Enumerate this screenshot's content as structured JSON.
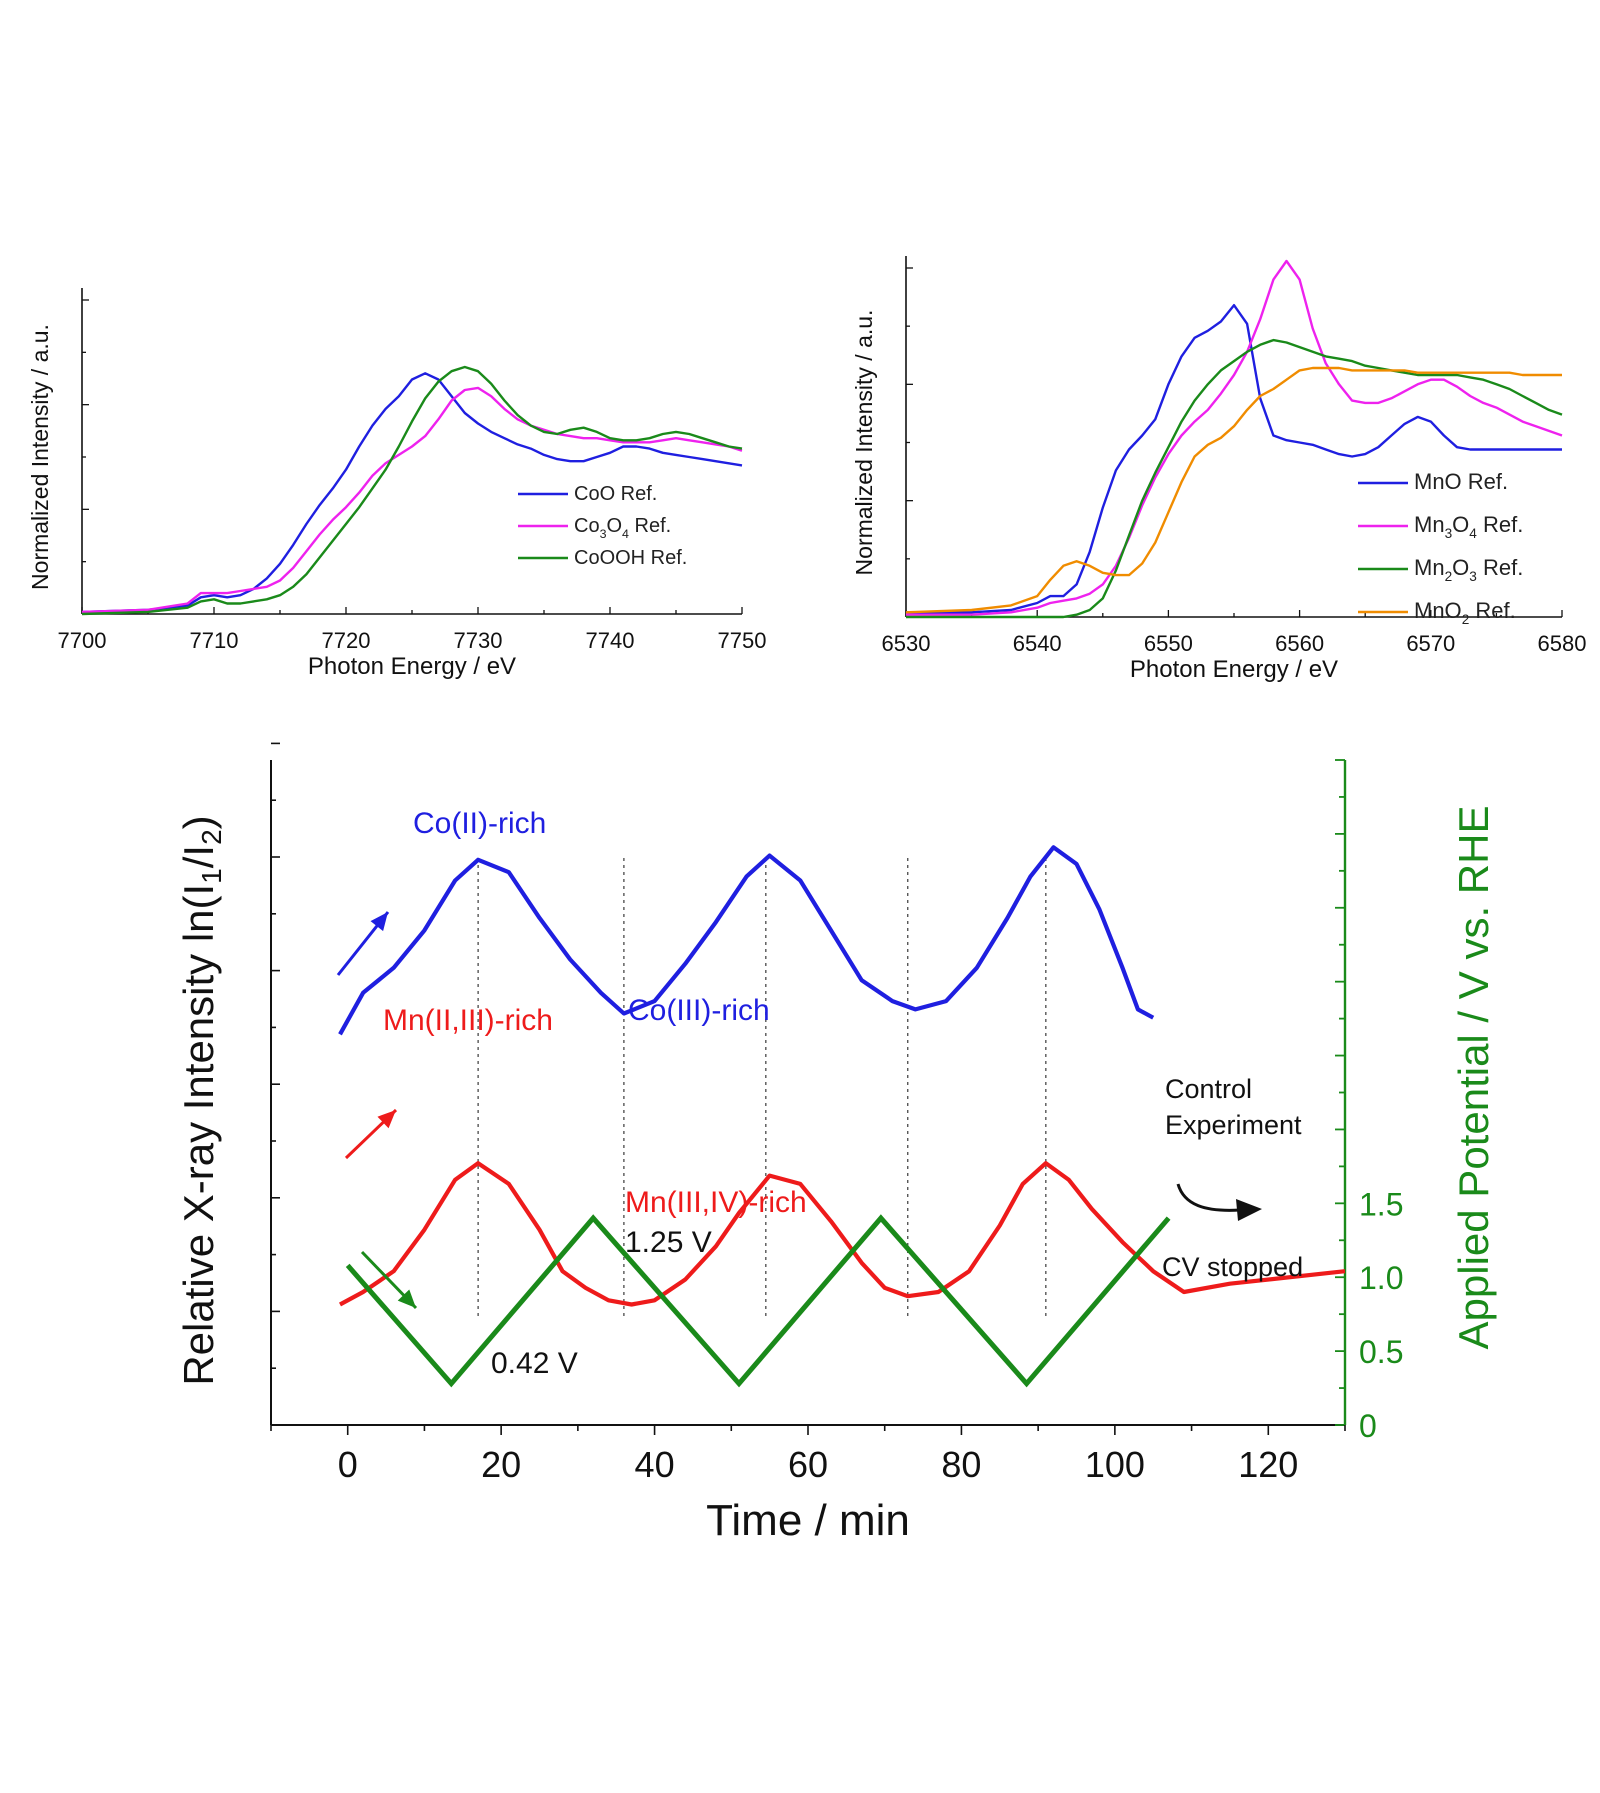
{
  "chart_data": [
    {
      "id": "co",
      "type": "line",
      "xlabel": "Photon Energy / eV",
      "ylabel": "Normalized Intensity / a.u.",
      "xlim": [
        7700,
        7750
      ],
      "ylim": [
        0,
        1.5
      ],
      "xticks": [
        7700,
        7710,
        7720,
        7730,
        7740,
        7750
      ],
      "legend_position": "bottom-right",
      "series": [
        {
          "name": "CoO Ref.",
          "color": "#1f1fe0",
          "x": [
            7700,
            7705,
            7708,
            7709,
            7710,
            7711,
            7712,
            7713,
            7714,
            7715,
            7716,
            7717,
            7718,
            7719,
            7720,
            7721,
            7722,
            7723,
            7724,
            7725,
            7726,
            7727,
            7728,
            7729,
            7730,
            7731,
            7732,
            7733,
            7734,
            7735,
            7736,
            7737,
            7738,
            7739,
            7740,
            7741,
            7742,
            7743,
            7744,
            7745,
            7746,
            7747,
            7748,
            7749,
            7750
          ],
          "y": [
            0.01,
            0.02,
            0.04,
            0.08,
            0.09,
            0.08,
            0.09,
            0.12,
            0.17,
            0.24,
            0.33,
            0.43,
            0.52,
            0.6,
            0.69,
            0.8,
            0.9,
            0.98,
            1.04,
            1.12,
            1.15,
            1.12,
            1.04,
            0.96,
            0.91,
            0.87,
            0.84,
            0.81,
            0.79,
            0.76,
            0.74,
            0.73,
            0.73,
            0.75,
            0.77,
            0.8,
            0.8,
            0.79,
            0.77,
            0.76,
            0.75,
            0.74,
            0.73,
            0.72,
            0.71
          ]
        },
        {
          "name": "Co3O4 Ref.",
          "color": "#ee22ee",
          "x": [
            7700,
            7705,
            7708,
            7709,
            7710,
            7711,
            7712,
            7713,
            7714,
            7715,
            7716,
            7717,
            7718,
            7719,
            7720,
            7721,
            7722,
            7723,
            7724,
            7725,
            7726,
            7727,
            7728,
            7729,
            7730,
            7731,
            7732,
            7733,
            7734,
            7735,
            7736,
            7737,
            7738,
            7739,
            7740,
            7741,
            7742,
            7743,
            7744,
            7745,
            7746,
            7747,
            7748,
            7749,
            7750
          ],
          "y": [
            0.01,
            0.02,
            0.05,
            0.1,
            0.1,
            0.1,
            0.11,
            0.12,
            0.13,
            0.16,
            0.22,
            0.3,
            0.38,
            0.45,
            0.51,
            0.58,
            0.66,
            0.72,
            0.76,
            0.8,
            0.85,
            0.93,
            1.02,
            1.07,
            1.08,
            1.04,
            0.98,
            0.93,
            0.9,
            0.88,
            0.86,
            0.85,
            0.84,
            0.84,
            0.83,
            0.82,
            0.82,
            0.82,
            0.83,
            0.84,
            0.83,
            0.82,
            0.81,
            0.8,
            0.78
          ]
        },
        {
          "name": "CoOOH Ref.",
          "color": "#1a8a1a",
          "x": [
            7700,
            7705,
            7708,
            7709,
            7710,
            7711,
            7712,
            7713,
            7714,
            7715,
            7716,
            7717,
            7718,
            7719,
            7720,
            7721,
            7722,
            7723,
            7724,
            7725,
            7726,
            7727,
            7728,
            7729,
            7730,
            7731,
            7732,
            7733,
            7734,
            7735,
            7736,
            7737,
            7738,
            7739,
            7740,
            7741,
            7742,
            7743,
            7744,
            7745,
            7746,
            7747,
            7748,
            7749,
            7750
          ],
          "y": [
            0.0,
            0.01,
            0.03,
            0.06,
            0.07,
            0.05,
            0.05,
            0.06,
            0.07,
            0.09,
            0.13,
            0.19,
            0.27,
            0.35,
            0.43,
            0.51,
            0.6,
            0.69,
            0.8,
            0.92,
            1.03,
            1.11,
            1.16,
            1.18,
            1.16,
            1.1,
            1.02,
            0.95,
            0.9,
            0.87,
            0.86,
            0.88,
            0.89,
            0.87,
            0.84,
            0.83,
            0.83,
            0.84,
            0.86,
            0.87,
            0.86,
            0.84,
            0.82,
            0.8,
            0.79
          ]
        }
      ]
    },
    {
      "id": "mn",
      "type": "line",
      "xlabel": "Photon Energy / eV",
      "ylabel": "Normalized Intensity / a.u.",
      "xlim": [
        6530,
        6580
      ],
      "ylim": [
        0,
        1.5
      ],
      "xticks": [
        6530,
        6540,
        6550,
        6560,
        6570,
        6580
      ],
      "legend_position": "bottom-right",
      "series": [
        {
          "name": "MnO Ref.",
          "color": "#1f1fe0",
          "x": [
            6530,
            6535,
            6538,
            6540,
            6541,
            6542,
            6543,
            6544,
            6545,
            6546,
            6547,
            6548,
            6549,
            6550,
            6551,
            6552,
            6553,
            6554,
            6555,
            6556,
            6557,
            6558,
            6559,
            6560,
            6561,
            6562,
            6563,
            6564,
            6565,
            6566,
            6567,
            6568,
            6569,
            6570,
            6571,
            6572,
            6573,
            6574,
            6575,
            6576,
            6577,
            6578,
            6579,
            6580
          ],
          "y": [
            0.02,
            0.02,
            0.03,
            0.06,
            0.09,
            0.09,
            0.14,
            0.28,
            0.47,
            0.63,
            0.72,
            0.78,
            0.85,
            1.0,
            1.12,
            1.2,
            1.23,
            1.27,
            1.34,
            1.26,
            0.94,
            0.78,
            0.76,
            0.75,
            0.74,
            0.72,
            0.7,
            0.69,
            0.7,
            0.73,
            0.78,
            0.83,
            0.86,
            0.84,
            0.78,
            0.73,
            0.72,
            0.72,
            0.72,
            0.72,
            0.72,
            0.72,
            0.72,
            0.72
          ]
        },
        {
          "name": "Mn3O4 Ref.",
          "color": "#ee22ee",
          "x": [
            6530,
            6535,
            6538,
            6540,
            6541,
            6542,
            6543,
            6544,
            6545,
            6546,
            6547,
            6548,
            6549,
            6550,
            6551,
            6552,
            6553,
            6554,
            6555,
            6556,
            6557,
            6558,
            6559,
            6560,
            6561,
            6562,
            6563,
            6564,
            6565,
            6566,
            6567,
            6568,
            6569,
            6570,
            6571,
            6572,
            6573,
            6574,
            6575,
            6576,
            6577,
            6578,
            6579,
            6580
          ],
          "y": [
            0.01,
            0.01,
            0.02,
            0.04,
            0.06,
            0.07,
            0.08,
            0.1,
            0.14,
            0.22,
            0.34,
            0.48,
            0.6,
            0.7,
            0.78,
            0.84,
            0.89,
            0.96,
            1.04,
            1.14,
            1.28,
            1.45,
            1.53,
            1.45,
            1.24,
            1.09,
            1.0,
            0.93,
            0.92,
            0.92,
            0.94,
            0.97,
            1.0,
            1.02,
            1.02,
            0.99,
            0.95,
            0.92,
            0.9,
            0.87,
            0.84,
            0.82,
            0.8,
            0.78
          ]
        },
        {
          "name": "Mn2O3 Ref.",
          "color": "#1a8a1a",
          "x": [
            6530,
            6535,
            6538,
            6540,
            6541,
            6542,
            6543,
            6544,
            6545,
            6546,
            6547,
            6548,
            6549,
            6550,
            6551,
            6552,
            6553,
            6554,
            6555,
            6556,
            6557,
            6558,
            6559,
            6560,
            6561,
            6562,
            6563,
            6564,
            6565,
            6566,
            6567,
            6568,
            6569,
            6570,
            6571,
            6572,
            6573,
            6574,
            6575,
            6576,
            6577,
            6578,
            6579,
            6580
          ],
          "y": [
            0.0,
            0.0,
            0.0,
            0.0,
            0.0,
            0.0,
            0.01,
            0.03,
            0.08,
            0.2,
            0.35,
            0.5,
            0.62,
            0.73,
            0.84,
            0.93,
            1.0,
            1.06,
            1.1,
            1.14,
            1.17,
            1.19,
            1.18,
            1.16,
            1.14,
            1.12,
            1.11,
            1.1,
            1.08,
            1.07,
            1.06,
            1.05,
            1.04,
            1.04,
            1.04,
            1.04,
            1.03,
            1.02,
            1.0,
            0.98,
            0.95,
            0.92,
            0.89,
            0.87
          ]
        },
        {
          "name": "MnO2 Ref.",
          "color": "#f08c00",
          "x": [
            6530,
            6535,
            6538,
            6540,
            6541,
            6542,
            6543,
            6544,
            6545,
            6546,
            6547,
            6548,
            6549,
            6550,
            6551,
            6552,
            6553,
            6554,
            6555,
            6556,
            6557,
            6558,
            6559,
            6560,
            6561,
            6562,
            6563,
            6564,
            6565,
            6566,
            6567,
            6568,
            6569,
            6570,
            6571,
            6572,
            6573,
            6574,
            6575,
            6576,
            6577,
            6578,
            6579,
            6580
          ],
          "y": [
            0.02,
            0.03,
            0.05,
            0.09,
            0.16,
            0.22,
            0.24,
            0.22,
            0.19,
            0.18,
            0.18,
            0.23,
            0.32,
            0.45,
            0.58,
            0.69,
            0.74,
            0.77,
            0.82,
            0.89,
            0.95,
            0.98,
            1.02,
            1.06,
            1.07,
            1.07,
            1.07,
            1.06,
            1.06,
            1.06,
            1.06,
            1.06,
            1.05,
            1.05,
            1.05,
            1.05,
            1.05,
            1.05,
            1.05,
            1.05,
            1.04,
            1.04,
            1.04,
            1.04
          ]
        }
      ]
    },
    {
      "id": "time",
      "type": "line",
      "xlabel": "Time / min",
      "ylabel_left_prefix": "Relative X-ray Intensity ln(I",
      "ylabel_left_sub1": "1",
      "ylabel_left_mid": "/I",
      "ylabel_left_sub2": "2",
      "ylabel_left_suffix": ")",
      "ylabel_right": "Applied Potential  /  V vs. RHE",
      "xlim": [
        -10,
        130
      ],
      "xticks": [
        0,
        20,
        40,
        60,
        80,
        100,
        120
      ],
      "y2lim": [
        0,
        4.5
      ],
      "y2ticks": [
        0,
        0.5,
        1.0,
        1.5
      ],
      "y2ticklabels": [
        "0",
        "0.5",
        "1.0",
        "1.5"
      ],
      "series": [
        {
          "name": "Co",
          "color": "#1f1fe0",
          "x": [
            -1,
            2,
            6,
            10,
            14,
            17,
            21,
            25,
            29,
            33,
            36,
            40,
            44,
            48,
            52,
            55,
            59,
            63,
            67,
            71,
            74,
            78,
            82,
            86,
            89,
            92,
            95,
            98,
            101,
            103,
            105
          ],
          "y": [
            4.7,
            5.2,
            5.5,
            5.95,
            6.55,
            6.8,
            6.65,
            6.1,
            5.6,
            5.2,
            4.95,
            5.1,
            5.55,
            6.05,
            6.6,
            6.85,
            6.55,
            5.95,
            5.35,
            5.1,
            5.0,
            5.1,
            5.5,
            6.1,
            6.6,
            6.95,
            6.75,
            6.2,
            5.5,
            5.0,
            4.9
          ]
        },
        {
          "name": "Mn",
          "color": "#ee1b1b",
          "x": [
            -1,
            2,
            6,
            10,
            14,
            17,
            21,
            25,
            28,
            31,
            34,
            37,
            40,
            44,
            48,
            51,
            55,
            59,
            63,
            67,
            70,
            73,
            77,
            81,
            85,
            88,
            91,
            94,
            97,
            101,
            105,
            109,
            115,
            130
          ],
          "y": [
            1.45,
            1.6,
            1.85,
            2.35,
            2.95,
            3.15,
            2.9,
            2.35,
            1.85,
            1.65,
            1.5,
            1.45,
            1.5,
            1.75,
            2.15,
            2.55,
            3.0,
            2.9,
            2.45,
            1.95,
            1.65,
            1.55,
            1.6,
            1.85,
            2.4,
            2.9,
            3.15,
            2.95,
            2.6,
            2.2,
            1.85,
            1.6,
            1.7,
            1.85
          ]
        },
        {
          "name": "Potential",
          "color": "#1a8a1a",
          "x": [
            0,
            13.5,
            32,
            51,
            69.5,
            88.5,
            107
          ],
          "y": [
            1.08,
            0.28,
            1.4,
            0.28,
            1.4,
            0.28,
            1.4
          ]
        }
      ],
      "vlines_x": [
        17,
        36,
        54.5,
        73,
        91
      ],
      "annotations": [
        {
          "text": "Co(II)-rich",
          "color": "#1f1fe0"
        },
        {
          "text": "Co(III)-rich",
          "color": "#1f1fe0"
        },
        {
          "text": "Mn(II,III)-rich",
          "color": "#ee1b1b"
        },
        {
          "text": "Mn(III,IV)-rich",
          "color": "#ee1b1b"
        },
        {
          "text": "1.25 V",
          "color": "#111111"
        },
        {
          "text": "0.42 V",
          "color": "#111111"
        },
        {
          "text": "Control",
          "color": "#111111"
        },
        {
          "text": "Experiment",
          "color": "#111111"
        },
        {
          "text": "CV stopped",
          "color": "#111111"
        }
      ]
    }
  ]
}
